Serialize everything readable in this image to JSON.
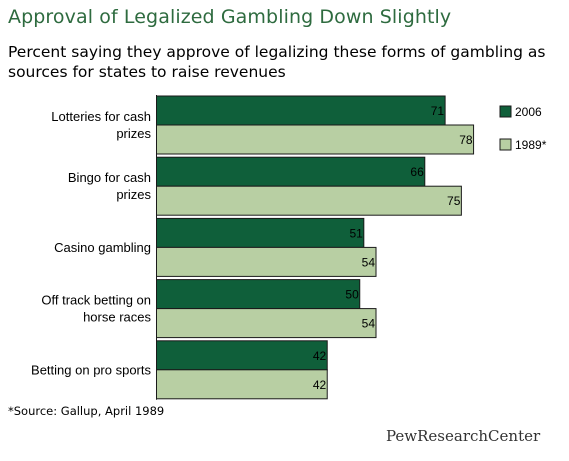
{
  "title": "Approval of Legalized Gambling Down Slightly",
  "subtitle": "Percent saying they approve of legalizing these forms of gambling as sources for states to raise revenues",
  "footnote": "*Source: Gallup, April 1989",
  "logo_text": "PewResearchCenter",
  "colors": {
    "series_2006": "#0f5f3a",
    "series_1989": "#b8cfa3",
    "title": "#2e6b3f"
  },
  "chart_data": {
    "type": "bar",
    "orientation": "horizontal",
    "categories": [
      [
        "Lotteries for cash",
        "prizes"
      ],
      [
        "Bingo for cash",
        "prizes"
      ],
      [
        "Casino gambling"
      ],
      [
        "Off track betting on",
        "horse races"
      ],
      [
        "Betting on pro sports"
      ]
    ],
    "series": [
      {
        "name": "2006",
        "values": [
          71,
          66,
          51,
          50,
          42
        ]
      },
      {
        "name": "1989*",
        "values": [
          78,
          75,
          54,
          54,
          42
        ]
      }
    ],
    "legend_position": "right",
    "grid": false
  }
}
